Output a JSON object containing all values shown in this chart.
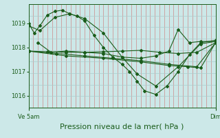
{
  "title": "Pression niveau de la mer( hPa )",
  "bg_color": "#cce8e8",
  "plot_bg_color": "#cce8e8",
  "line_color": "#1a5c1a",
  "grid_color_v": "#cc8888",
  "grid_color_h": "#aacccc",
  "ylim": [
    1015.5,
    1019.8
  ],
  "yticks": [
    1016,
    1017,
    1018,
    1019
  ],
  "xtick_left_pos": 0.0,
  "xtick_right_pos": 1.0,
  "xlabel_left": "Ve 5am",
  "xlabel_right": "Dim",
  "title_fontsize": 8,
  "tick_fontsize": 6,
  "num_v_gridlines": 40,
  "series": [
    {
      "x": [
        0.0,
        0.03,
        0.06,
        0.1,
        0.14,
        0.18,
        0.22,
        0.26,
        0.3,
        0.35,
        0.4,
        0.45,
        0.5,
        0.54,
        0.58,
        0.62,
        0.68,
        0.74,
        0.8,
        0.86,
        0.92,
        1.0
      ],
      "y": [
        1019.0,
        1018.6,
        1018.9,
        1019.35,
        1019.5,
        1019.55,
        1019.4,
        1019.3,
        1019.1,
        1018.5,
        1018.0,
        1017.6,
        1017.3,
        1017.0,
        1016.6,
        1016.2,
        1016.05,
        1016.4,
        1017.0,
        1017.7,
        1018.2,
        1018.3
      ]
    },
    {
      "x": [
        0.0,
        0.06,
        0.14,
        0.22,
        0.3,
        0.4,
        0.5,
        0.58,
        0.68,
        0.8,
        0.92,
        1.0
      ],
      "y": [
        1018.9,
        1018.7,
        1019.25,
        1019.4,
        1019.2,
        1018.6,
        1017.6,
        1016.9,
        1016.4,
        1017.2,
        1018.15,
        1018.25
      ]
    },
    {
      "x": [
        0.0,
        0.1,
        0.2,
        0.3,
        0.4,
        0.5,
        0.6,
        0.7,
        0.8,
        0.9,
        1.0
      ],
      "y": [
        1017.85,
        1017.82,
        1017.8,
        1017.8,
        1017.82,
        1017.85,
        1017.88,
        1017.8,
        1017.75,
        1017.8,
        1018.2
      ]
    },
    {
      "x": [
        0.0,
        0.15,
        0.3,
        0.45,
        0.6,
        0.75,
        0.9,
        1.0
      ],
      "y": [
        1017.85,
        1017.75,
        1017.65,
        1017.55,
        1017.45,
        1017.3,
        1017.2,
        1018.2
      ]
    },
    {
      "x": [
        0.0,
        0.2,
        0.4,
        0.6,
        0.75,
        0.85,
        0.92,
        1.0
      ],
      "y": [
        1017.85,
        1017.65,
        1017.55,
        1017.4,
        1017.25,
        1017.2,
        1017.15,
        1018.2
      ]
    },
    {
      "x": [
        0.05,
        0.12,
        0.2,
        0.3,
        0.4,
        0.5,
        0.6,
        0.68,
        0.75,
        0.8,
        0.86,
        0.92,
        1.0
      ],
      "y": [
        1018.2,
        1017.8,
        1017.85,
        1017.8,
        1017.75,
        1017.6,
        1017.55,
        1017.65,
        1017.85,
        1018.75,
        1018.2,
        1018.25,
        1018.25
      ]
    }
  ]
}
